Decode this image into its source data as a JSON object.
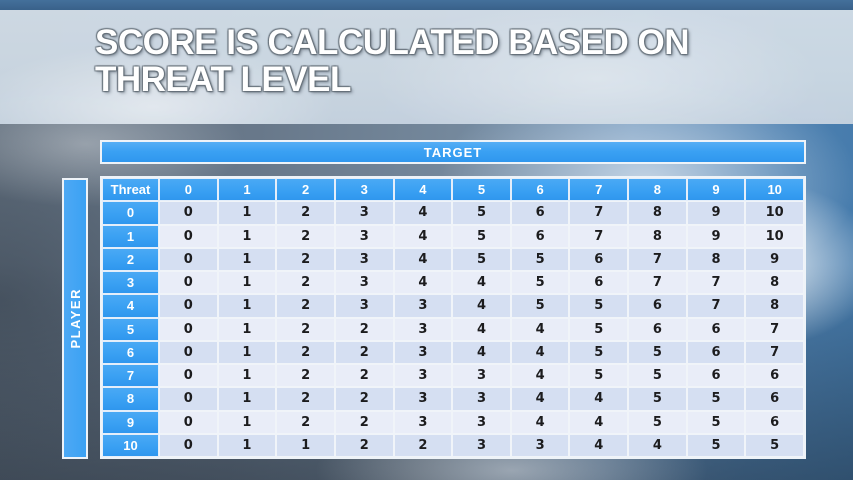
{
  "slide": {
    "title": "SCORE IS CALCULATED BASED ON\nTHREAT LEVEL"
  },
  "table": {
    "target_header": "TARGET",
    "player_header": "PLAYER",
    "corner_header": "Threat",
    "column_headers": [
      "0",
      "1",
      "2",
      "3",
      "4",
      "5",
      "6",
      "7",
      "8",
      "9",
      "10"
    ],
    "row_headers": [
      "0",
      "1",
      "2",
      "3",
      "4",
      "5",
      "6",
      "7",
      "8",
      "9",
      "10"
    ],
    "rows": [
      [
        0,
        1,
        2,
        3,
        4,
        5,
        6,
        7,
        8,
        9,
        10
      ],
      [
        0,
        1,
        2,
        3,
        4,
        5,
        6,
        7,
        8,
        9,
        10
      ],
      [
        0,
        1,
        2,
        3,
        4,
        5,
        5,
        6,
        7,
        8,
        9
      ],
      [
        0,
        1,
        2,
        3,
        4,
        4,
        5,
        6,
        7,
        7,
        8
      ],
      [
        0,
        1,
        2,
        3,
        3,
        4,
        5,
        5,
        6,
        7,
        8
      ],
      [
        0,
        1,
        2,
        2,
        3,
        4,
        4,
        5,
        6,
        6,
        7
      ],
      [
        0,
        1,
        2,
        2,
        3,
        4,
        4,
        5,
        5,
        6,
        7
      ],
      [
        0,
        1,
        2,
        2,
        3,
        3,
        4,
        5,
        5,
        6,
        6
      ],
      [
        0,
        1,
        2,
        2,
        3,
        3,
        4,
        4,
        5,
        5,
        6
      ],
      [
        0,
        1,
        2,
        2,
        3,
        3,
        4,
        4,
        5,
        5,
        6
      ],
      [
        0,
        1,
        1,
        2,
        2,
        3,
        3,
        4,
        4,
        5,
        5
      ]
    ]
  },
  "chart_data": {
    "type": "table",
    "title": "SCORE IS CALCULATED BASED ON THREAT LEVEL",
    "column_axis_label": "TARGET",
    "row_axis_label": "PLAYER",
    "corner_label": "Threat",
    "columns": [
      0,
      1,
      2,
      3,
      4,
      5,
      6,
      7,
      8,
      9,
      10
    ],
    "rows": [
      0,
      1,
      2,
      3,
      4,
      5,
      6,
      7,
      8,
      9,
      10
    ],
    "values": [
      [
        0,
        1,
        2,
        3,
        4,
        5,
        6,
        7,
        8,
        9,
        10
      ],
      [
        0,
        1,
        2,
        3,
        4,
        5,
        6,
        7,
        8,
        9,
        10
      ],
      [
        0,
        1,
        2,
        3,
        4,
        5,
        5,
        6,
        7,
        8,
        9
      ],
      [
        0,
        1,
        2,
        3,
        4,
        4,
        5,
        6,
        7,
        7,
        8
      ],
      [
        0,
        1,
        2,
        3,
        3,
        4,
        5,
        5,
        6,
        7,
        8
      ],
      [
        0,
        1,
        2,
        2,
        3,
        4,
        4,
        5,
        6,
        6,
        7
      ],
      [
        0,
        1,
        2,
        2,
        3,
        4,
        4,
        5,
        5,
        6,
        7
      ],
      [
        0,
        1,
        2,
        2,
        3,
        3,
        4,
        5,
        5,
        6,
        6
      ],
      [
        0,
        1,
        2,
        2,
        3,
        3,
        4,
        4,
        5,
        5,
        6
      ],
      [
        0,
        1,
        2,
        2,
        3,
        3,
        4,
        4,
        5,
        5,
        6
      ],
      [
        0,
        1,
        1,
        2,
        2,
        3,
        3,
        4,
        4,
        5,
        5
      ]
    ]
  },
  "colors": {
    "accent_blue": "#3ba1f3",
    "band_even": "#d5dff2",
    "band_odd": "#e9edf8",
    "title_text": "#ffffff",
    "cell_text": "#1c1c1e",
    "top_strip": "#39618a",
    "title_band": "#cdd9e4"
  }
}
